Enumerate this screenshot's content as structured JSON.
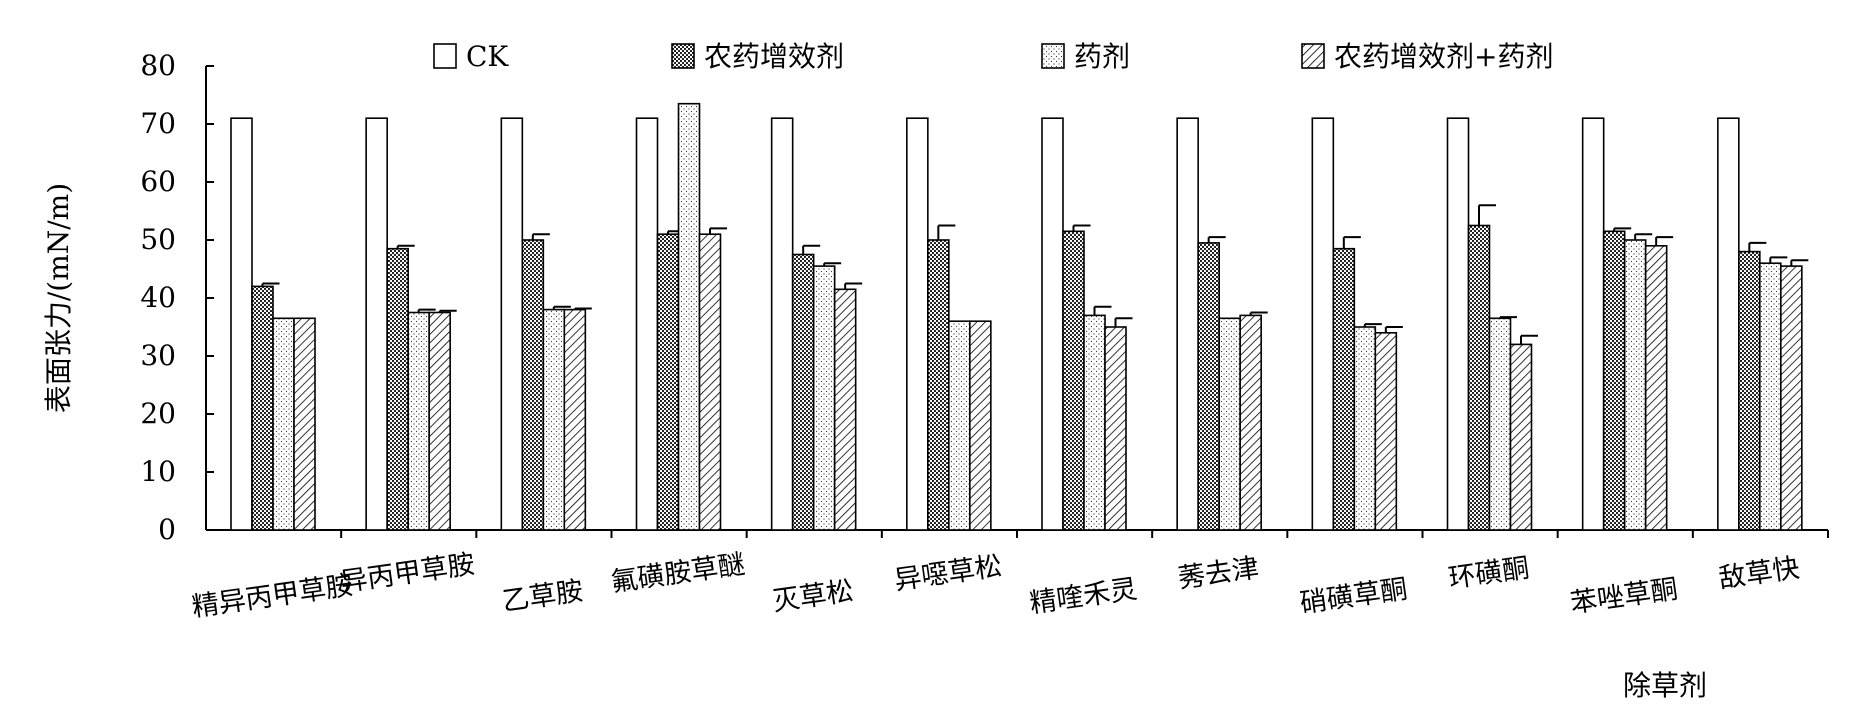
{
  "chart_data": {
    "type": "bar",
    "title": "",
    "xlabel": "除草剂",
    "ylabel": "表面张力/(mN/m)",
    "ylim": [
      0,
      80
    ],
    "yticks": [
      0,
      10,
      20,
      30,
      40,
      50,
      60,
      70,
      80
    ],
    "grid": false,
    "legend_position": "top",
    "categories": [
      "精异丙甲草胺",
      "异丙甲草胺",
      "乙草胺",
      "氟磺胺草醚",
      "灭草松",
      "异噁草松",
      "精喹禾灵",
      "莠去津",
      "硝磺草酮",
      "环磺酮",
      "苯唑草酮",
      "敌草快"
    ],
    "series": [
      {
        "name": "CK",
        "pattern": "white",
        "values": [
          71,
          71,
          71,
          71,
          71,
          71,
          71,
          71,
          71,
          71,
          71,
          71
        ],
        "errors": [
          0,
          0,
          0,
          0,
          0,
          0,
          0,
          0,
          0,
          0,
          0,
          0
        ]
      },
      {
        "name": "农药增效剂",
        "pattern": "dense-dots",
        "values": [
          42,
          48.5,
          50,
          51,
          47.5,
          50,
          51.5,
          49.5,
          48.5,
          52.5,
          51.5,
          48
        ],
        "errors": [
          0.5,
          0.5,
          1,
          0.5,
          1.5,
          2.5,
          1,
          1,
          2,
          3.5,
          0.5,
          1.5
        ]
      },
      {
        "name": "药剂",
        "pattern": "light-dots",
        "values": [
          36.5,
          37.5,
          38,
          73.5,
          45.5,
          36,
          37,
          36.5,
          35,
          36.5,
          50,
          46
        ],
        "errors": [
          0,
          0.5,
          0.5,
          0,
          0.5,
          0,
          1.5,
          0,
          0.5,
          0.2,
          1,
          1
        ]
      },
      {
        "name": "农药增效剂+药剂",
        "pattern": "hatch",
        "values": [
          36.5,
          37.5,
          38,
          51,
          41.5,
          36,
          35,
          37,
          34,
          32,
          49,
          45.5
        ],
        "errors": [
          0,
          0.3,
          0.2,
          1,
          1,
          0,
          1.5,
          0.5,
          1,
          1.5,
          1.5,
          1
        ]
      }
    ]
  }
}
